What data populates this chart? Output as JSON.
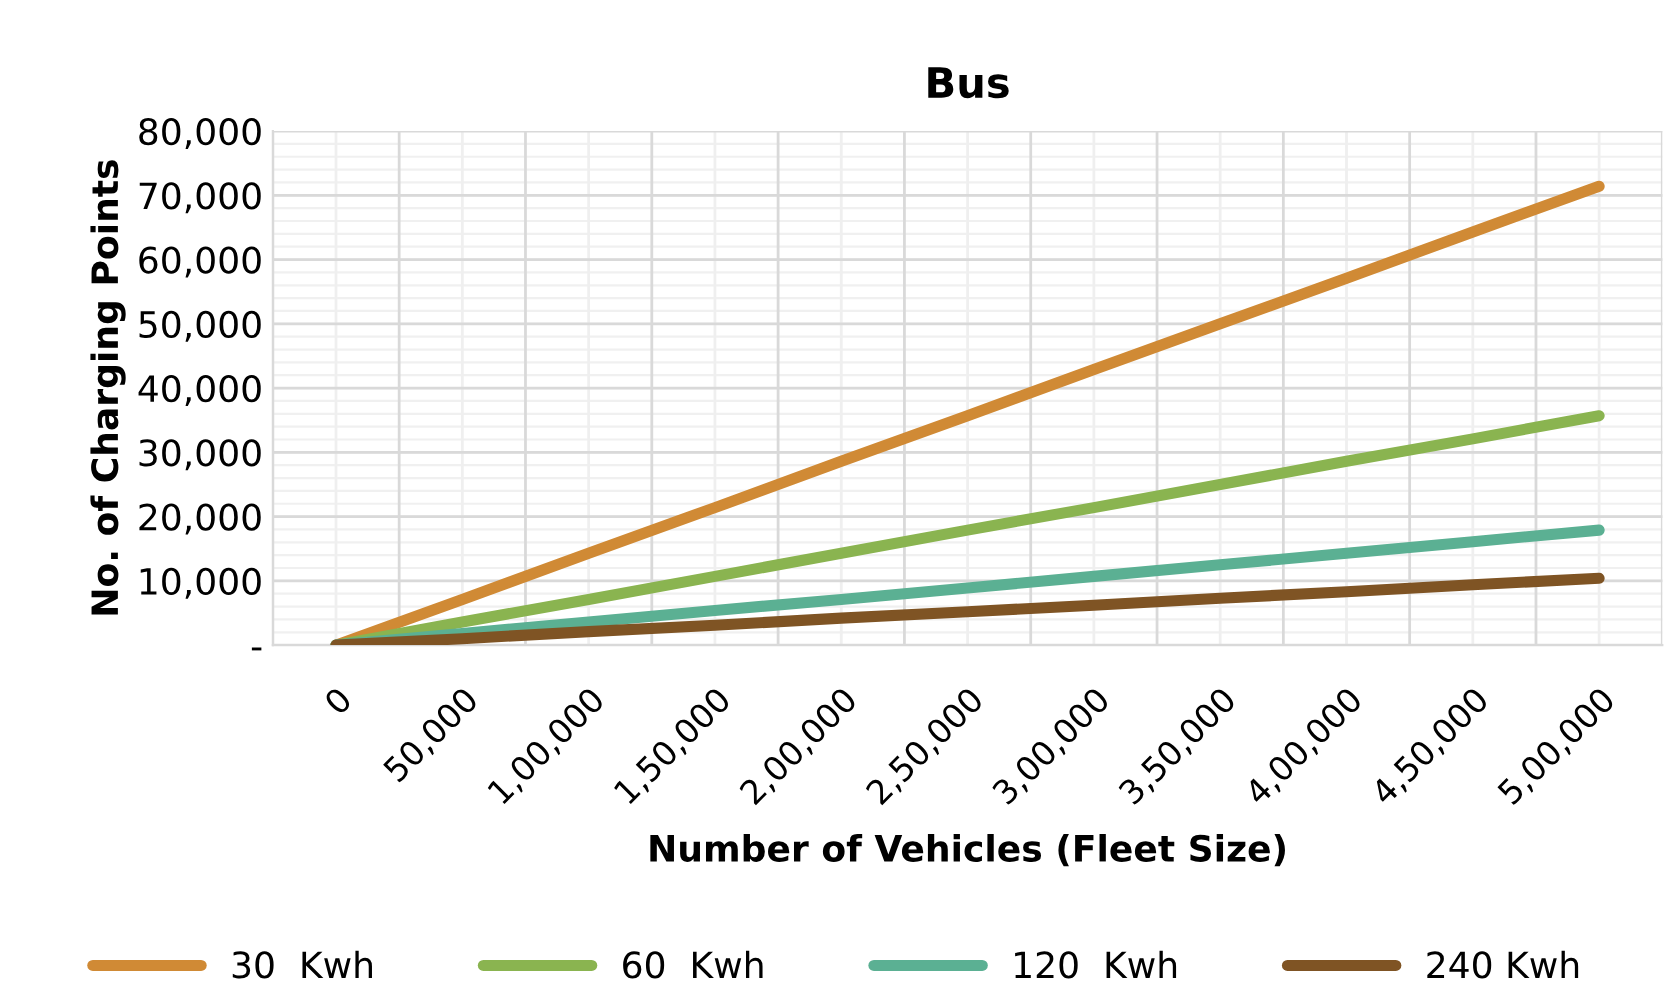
{
  "chart_data": {
    "type": "line",
    "title": "Bus",
    "xlabel": "Number of Vehicles (Fleet Size)",
    "ylabel": "No. of Charging Points",
    "categories": [
      "0",
      "50,000",
      "1,00,000",
      "1,50,000",
      "2,00,000",
      "2,50,000",
      "3,00,000",
      "3,50,000",
      "4,00,000",
      "4,50,000",
      "5,00,000"
    ],
    "series": [
      {
        "name": "30  Kwh",
        "color": "#d08a35",
        "values": [
          0,
          7100,
          14300,
          21400,
          28600,
          35700,
          42900,
          50000,
          57100,
          64300,
          71400
        ]
      },
      {
        "name": "60  Kwh",
        "color": "#8ab450",
        "values": [
          0,
          3600,
          7100,
          10700,
          14300,
          17900,
          21400,
          25000,
          28600,
          32100,
          35700
        ]
      },
      {
        "name": "120  Kwh",
        "color": "#5bb093",
        "values": [
          0,
          1800,
          3600,
          5400,
          7100,
          8900,
          10700,
          12500,
          14300,
          16100,
          17900
        ]
      },
      {
        "name": "240 Kwh",
        "color": "#7f5424",
        "values": [
          0,
          1000,
          2100,
          3100,
          4200,
          5200,
          6200,
          7300,
          8300,
          9400,
          10400
        ]
      }
    ],
    "ylim": [
      0,
      80000
    ],
    "yticks": [
      {
        "value": 0,
        "label": "-"
      },
      {
        "value": 10000,
        "label": "10,000"
      },
      {
        "value": 20000,
        "label": "20,000"
      },
      {
        "value": 30000,
        "label": "30,000"
      },
      {
        "value": 40000,
        "label": "40,000"
      },
      {
        "value": 50000,
        "label": "50,000"
      },
      {
        "value": 60000,
        "label": "60,000"
      },
      {
        "value": 70000,
        "label": "70,000"
      },
      {
        "value": 80000,
        "label": "80,000"
      }
    ],
    "grid": true,
    "legend": "bottom",
    "marker": "none",
    "line_style": "solid"
  }
}
